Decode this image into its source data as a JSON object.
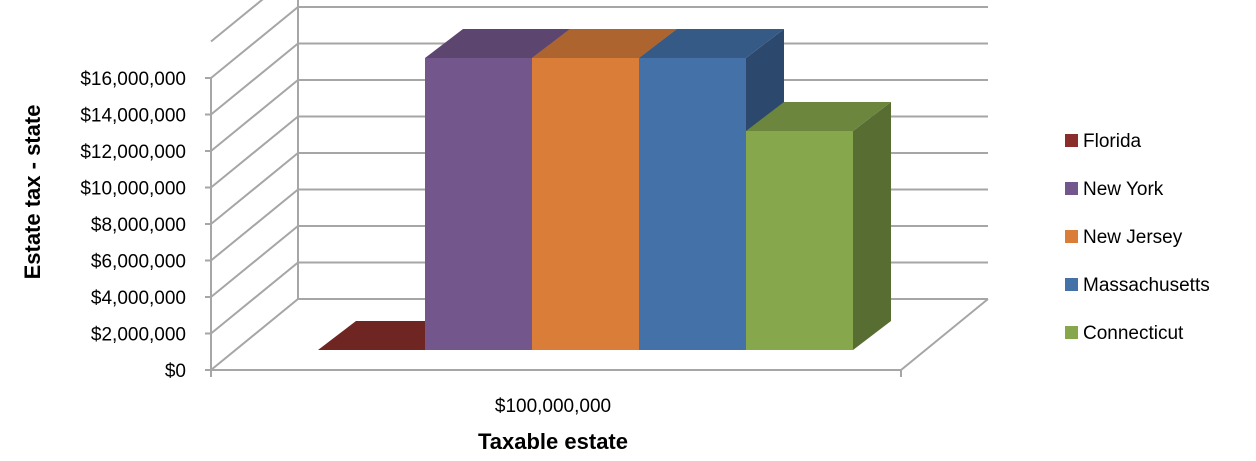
{
  "chart_data": {
    "type": "bar",
    "chart_style": "3d-clustered-column",
    "categories": [
      "$100,000,000"
    ],
    "series": [
      {
        "name": "Florida",
        "values": [
          0
        ],
        "color": "#8B2E2B"
      },
      {
        "name": "New York",
        "values": [
          16000000
        ],
        "color": "#73578C"
      },
      {
        "name": "New Jersey",
        "values": [
          16000000
        ],
        "color": "#D97D39"
      },
      {
        "name": "Massachusetts",
        "values": [
          16000000
        ],
        "color": "#4471A8"
      },
      {
        "name": "Connecticut",
        "values": [
          12000000
        ],
        "color": "#87A74D"
      }
    ],
    "xlabel": "Taxable estate",
    "ylabel": "Estate  tax - state",
    "ylim": [
      0,
      16000000
    ],
    "yticks": [
      "$0",
      "$2,000,000",
      "$4,000,000",
      "$6,000,000",
      "$8,000,000",
      "$10,000,000",
      "$12,000,000",
      "$14,000,000",
      "$16,000,000"
    ],
    "grid": true,
    "legend_position": "right"
  }
}
